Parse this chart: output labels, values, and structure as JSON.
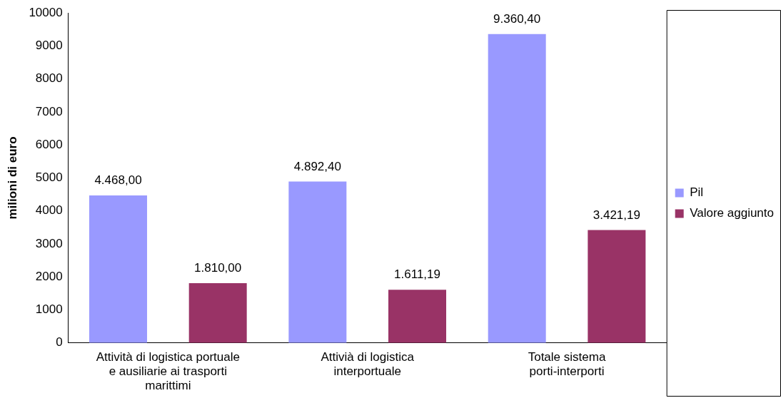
{
  "chart_data": {
    "type": "bar",
    "ylabel": "milioni di euro",
    "categories": [
      "Attività di logistica portuale e ausiliarie ai trasporti marittimi",
      "Attivià di logistica interportuale",
      "Totale sistema porti-interporti"
    ],
    "series": [
      {
        "name": "Pil",
        "color": "#9999ff",
        "values": [
          4468,
          4892.4,
          9360.4
        ],
        "value_labels": [
          "4.468,00",
          "4.892,40",
          "9.360,40"
        ]
      },
      {
        "name": "Valore aggiunto",
        "color": "#993366",
        "values": [
          1810,
          1611.19,
          3421.19
        ],
        "value_labels": [
          "1.810,00",
          "1.611,19",
          "3.421,19"
        ]
      }
    ],
    "ylim": [
      0,
      10000
    ],
    "yticks": [
      0,
      1000,
      2000,
      3000,
      4000,
      5000,
      6000,
      7000,
      8000,
      9000,
      10000
    ],
    "grid": false,
    "legend": "right"
  }
}
